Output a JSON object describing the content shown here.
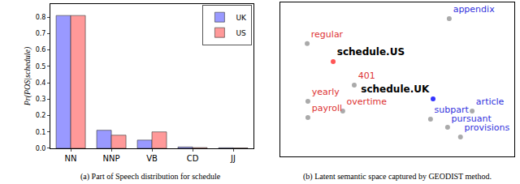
{
  "chart_data": [
    {
      "type": "bar",
      "title": "(a) Part of Speech distribution for schedule",
      "y_label": "Pr(POS|schedule)",
      "categories": [
        "NN",
        "NNP",
        "VB",
        "CD",
        "JJ"
      ],
      "series": [
        {
          "name": "UK",
          "color": "#9999ff",
          "values": [
            0.81,
            0.11,
            0.05,
            0.008,
            0.003
          ]
        },
        {
          "name": "US",
          "color": "#ff9999",
          "values": [
            0.81,
            0.08,
            0.1,
            0.004,
            0.002
          ]
        }
      ],
      "ylim": [
        0,
        0.88
      ],
      "yticks": [
        {
          "value": 0,
          "label": "0.0"
        },
        0.1,
        0.2,
        0.3,
        0.4,
        0.5,
        0.6,
        0.7,
        0.8
      ],
      "legend": "upper right",
      "grid": false
    },
    {
      "type": "scatter",
      "title": "(b) Latent semantic space captured by GEODIST method.",
      "xlim": [
        0,
        100
      ],
      "ylim": [
        0,
        100
      ],
      "tick_labels": false,
      "points": [
        {
          "label": "appendix",
          "x": 72.2,
          "y": 89.5,
          "color": "#aaaaaa",
          "label_color": "#3333dd"
        },
        {
          "label": "regular",
          "x": 11.5,
          "y": 73.2,
          "color": "#aaaaaa",
          "label_color": "#dd3333"
        },
        {
          "label": "schedule.US",
          "x": 22.6,
          "y": 61.6,
          "color": "#ff5555",
          "label_color": "#000000"
        },
        {
          "label": "schedule.UK",
          "x": 65.3,
          "y": 37.4,
          "color": "#3333ff",
          "label_color": "#000000"
        },
        {
          "label": "article",
          "x": 82.0,
          "y": 29.5,
          "color": "#aaaaaa",
          "label_color": "#3333dd"
        },
        {
          "label": "401",
          "x": 31.6,
          "y": 46.3,
          "color": "#aaaaaa",
          "label_color": "#dd3333"
        },
        {
          "label": "yearly",
          "x": 11.8,
          "y": 35.8,
          "color": "#aaaaaa",
          "label_color": "#dd3333"
        },
        {
          "label": "overtime",
          "x": 26.7,
          "y": 29.5,
          "color": "#aaaaaa",
          "label_color": "#dd3333"
        },
        {
          "label": "payroll",
          "x": 11.8,
          "y": 25.3,
          "color": "#aaaaaa",
          "label_color": "#dd3333"
        },
        {
          "label": "subpart",
          "x": 64.2,
          "y": 24.2,
          "color": "#aaaaaa",
          "label_color": "#3333dd"
        },
        {
          "label": "pursuant",
          "x": 71.5,
          "y": 18.9,
          "color": "#aaaaaa",
          "label_color": "#3333dd"
        },
        {
          "label": "provisions",
          "x": 77.0,
          "y": 12.6,
          "color": "#aaaaaa",
          "label_color": "#3333dd"
        }
      ]
    }
  ]
}
